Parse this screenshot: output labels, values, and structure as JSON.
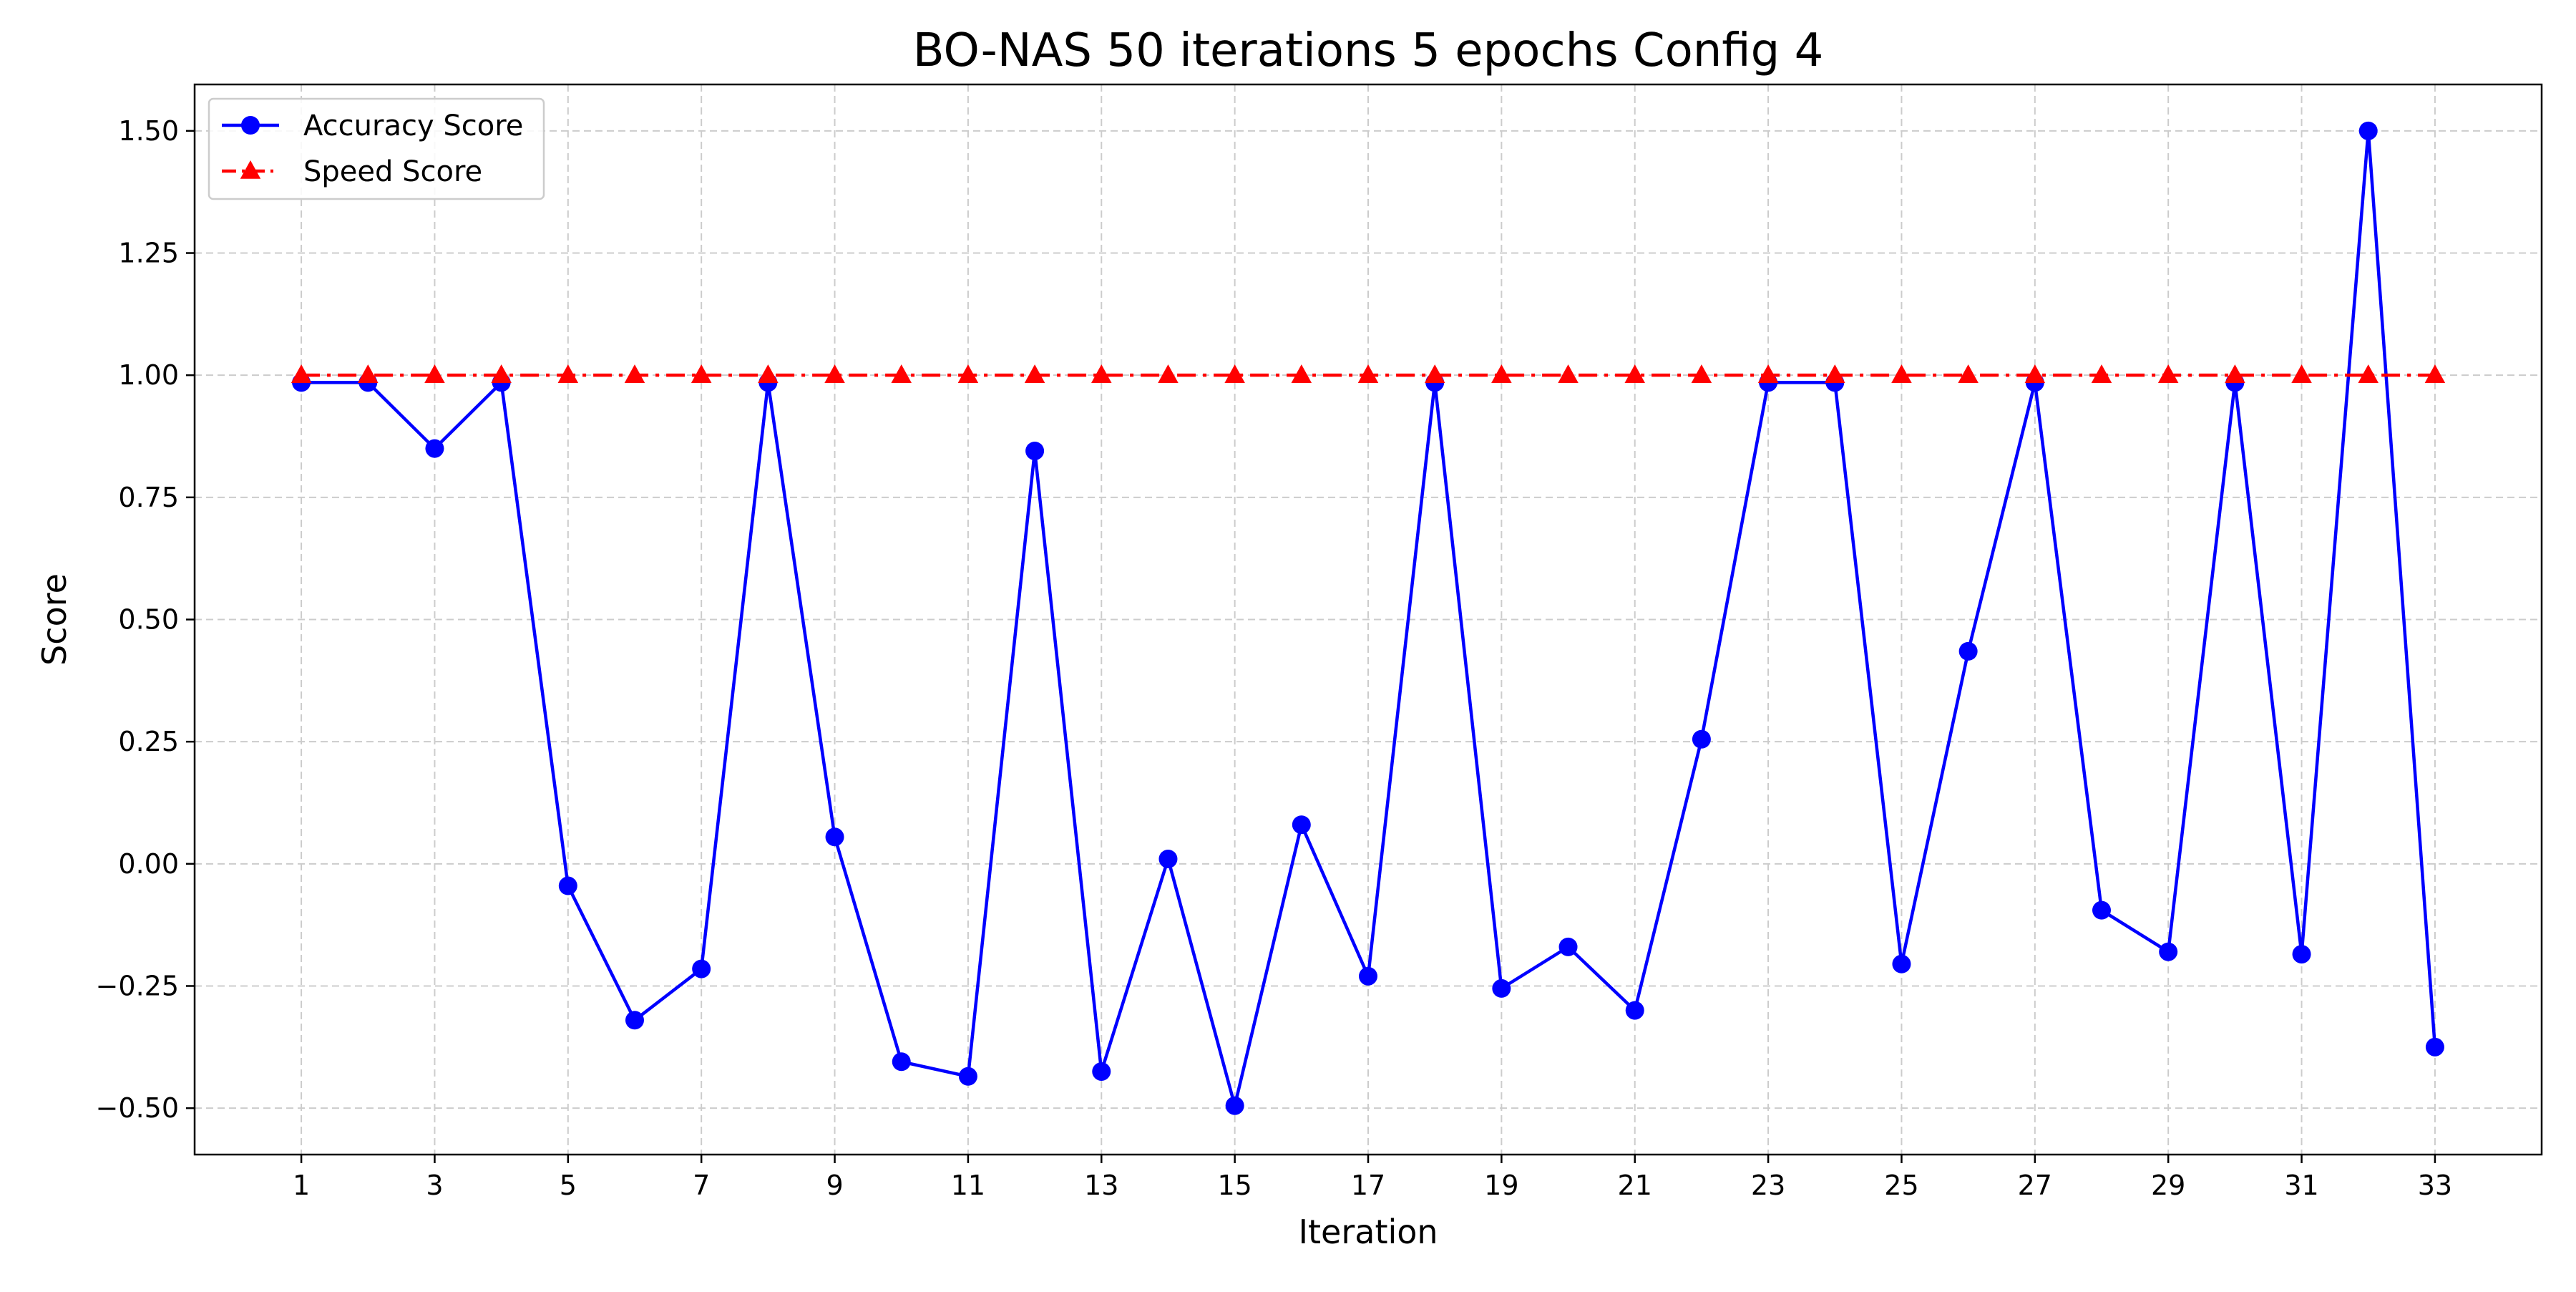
{
  "chart_data": {
    "type": "line",
    "title": "BO-NAS 50 iterations 5 epochs Config 4",
    "xlabel": "Iteration",
    "ylabel": "Score",
    "x": [
      1,
      2,
      3,
      4,
      5,
      6,
      7,
      8,
      9,
      10,
      11,
      12,
      13,
      14,
      15,
      16,
      17,
      18,
      19,
      20,
      21,
      22,
      23,
      24,
      25,
      26,
      27,
      28,
      29,
      30,
      31,
      32,
      33
    ],
    "x_ticks": [
      1,
      3,
      5,
      7,
      9,
      11,
      13,
      15,
      17,
      19,
      21,
      23,
      25,
      27,
      29,
      31,
      33
    ],
    "y_ticks": [
      "−0.50",
      "−0.25",
      "0.00",
      "0.25",
      "0.50",
      "0.75",
      "1.00",
      "1.25",
      "1.50"
    ],
    "y_tick_values": [
      -0.5,
      -0.25,
      0,
      0.25,
      0.5,
      0.75,
      1.0,
      1.25,
      1.5
    ],
    "xlim": [
      -0.6,
      34.6
    ],
    "ylim": [
      -0.595,
      1.595
    ],
    "grid": true,
    "legend_position": "top-left",
    "series": [
      {
        "name": "Accuracy Score",
        "color": "#0000ff",
        "marker": "circle",
        "line_style": "solid",
        "values": [
          0.985,
          0.985,
          0.85,
          0.985,
          -0.045,
          -0.32,
          -0.215,
          0.985,
          0.055,
          -0.405,
          -0.435,
          0.845,
          -0.425,
          0.01,
          -0.495,
          0.08,
          -0.23,
          0.985,
          -0.255,
          -0.17,
          -0.3,
          0.255,
          0.985,
          0.985,
          -0.205,
          0.435,
          0.985,
          -0.095,
          -0.18,
          0.985,
          -0.185,
          1.5,
          -0.375
        ]
      },
      {
        "name": "Speed Score",
        "color": "#ff0000",
        "marker": "triangle",
        "line_style": "dash-dot",
        "values": [
          1,
          1,
          1,
          1,
          1,
          1,
          1,
          1,
          1,
          1,
          1,
          1,
          1,
          1,
          1,
          1,
          1,
          1,
          1,
          1,
          1,
          1,
          1,
          1,
          1,
          1,
          1,
          1,
          1,
          1,
          1,
          1,
          1
        ]
      }
    ]
  }
}
